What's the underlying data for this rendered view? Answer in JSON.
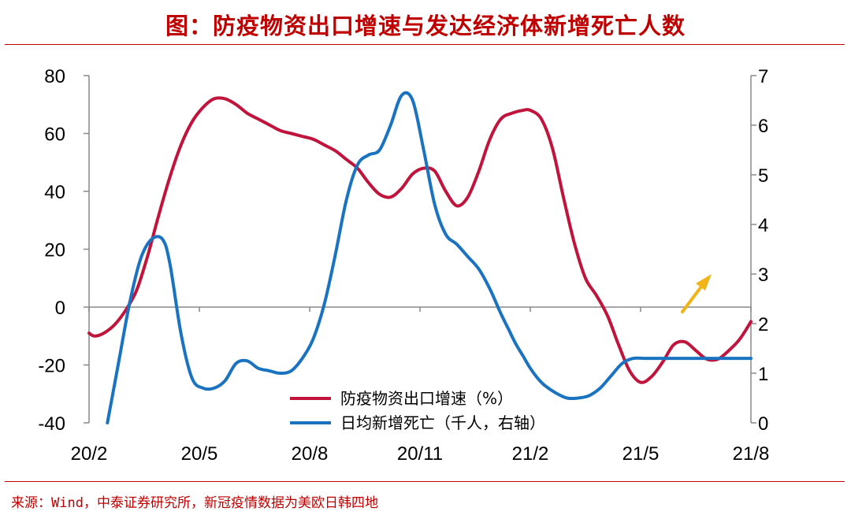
{
  "title": "图：防疫物资出口增速与发达经济体新增死亡人数",
  "source": "来源：Wind，中泰证券研究所，新冠疫情数据为美欧日韩四地",
  "colors": {
    "title": "#c00000",
    "series_red": "#c0143c",
    "series_blue": "#1a73c1",
    "arrow": "#f0b418",
    "axis": "#888888"
  },
  "chart_data": {
    "type": "line",
    "x_tick_labels": [
      "20/2",
      "20/5",
      "20/8",
      "20/11",
      "21/2",
      "21/5",
      "21/8"
    ],
    "y_left": {
      "min": -40,
      "max": 80,
      "ticks": [
        "80",
        "60",
        "40",
        "20",
        "0",
        "-20",
        "-40"
      ]
    },
    "y_right": {
      "min": 0,
      "max": 7,
      "ticks": [
        "7",
        "6",
        "5",
        "4",
        "3",
        "2",
        "1",
        "0"
      ]
    },
    "series": [
      {
        "name": "防疫物资出口增速（%）",
        "axis": "left",
        "color": "#c0143c",
        "x": [
          0.0,
          0.15,
          0.4,
          0.7,
          1.0,
          1.3,
          1.6,
          1.9,
          2.2,
          2.5,
          2.8,
          3.1,
          3.4,
          3.7,
          4.0,
          4.3,
          4.6,
          4.9,
          5.2,
          5.5,
          5.8,
          6.1,
          6.4,
          6.7,
          7.0,
          7.3,
          7.6,
          7.9,
          8.2,
          8.5,
          8.8,
          9.1,
          9.4,
          9.7,
          10.0,
          10.3,
          10.6,
          10.9,
          11.2,
          11.5,
          11.8,
          12.0,
          12.3,
          12.6,
          12.9,
          13.2,
          13.5,
          13.8,
          14.1,
          14.4,
          14.7,
          15.0,
          15.3,
          15.6,
          15.9,
          16.2,
          16.5,
          16.8,
          17.1,
          17.4,
          17.7,
          18.0
        ],
        "y": [
          -9,
          -10,
          -9,
          -6,
          -1,
          6,
          18,
          32,
          45,
          56,
          64,
          69,
          72,
          72,
          70,
          67,
          65,
          63,
          61,
          60,
          59,
          58,
          56,
          54,
          51,
          48,
          43,
          39,
          38,
          41,
          46,
          48,
          47,
          40,
          35,
          38,
          47,
          58,
          65,
          67,
          68,
          68,
          65,
          55,
          38,
          22,
          10,
          4,
          -3,
          -13,
          -22,
          -26,
          -24,
          -19,
          -13,
          -12,
          -15,
          -18,
          -18,
          -15,
          -11,
          -5
        ]
      },
      {
        "name": "日均新增死亡（千人，右轴）",
        "axis": "right",
        "color": "#1a73c1",
        "x": [
          0.5,
          0.8,
          1.1,
          1.4,
          1.7,
          2.0,
          2.2,
          2.5,
          2.8,
          3.1,
          3.4,
          3.7,
          4.0,
          4.3,
          4.6,
          4.9,
          5.2,
          5.5,
          5.8,
          6.1,
          6.4,
          6.7,
          7.0,
          7.3,
          7.6,
          7.9,
          8.2,
          8.5,
          8.8,
          9.1,
          9.4,
          9.7,
          10.0,
          10.3,
          10.6,
          10.9,
          11.2,
          11.4,
          11.6,
          11.8,
          12.0,
          12.2,
          12.4,
          12.7,
          13.0,
          13.3,
          13.6,
          13.9,
          14.2,
          14.5,
          14.8,
          15.1,
          15.4,
          15.7,
          16.0,
          16.3,
          16.6,
          16.9,
          17.2,
          17.5,
          17.8,
          18.0
        ],
        "y": [
          0.0,
          1.2,
          2.4,
          3.3,
          3.7,
          3.7,
          3.2,
          1.8,
          0.9,
          0.7,
          0.7,
          0.85,
          1.2,
          1.25,
          1.1,
          1.05,
          1.0,
          1.05,
          1.3,
          1.7,
          2.4,
          3.4,
          4.5,
          5.2,
          5.4,
          5.5,
          6.0,
          6.6,
          6.5,
          5.5,
          4.4,
          3.8,
          3.6,
          3.35,
          3.1,
          2.7,
          2.2,
          1.9,
          1.6,
          1.35,
          1.1,
          0.9,
          0.75,
          0.6,
          0.5,
          0.5,
          0.55,
          0.7,
          0.95,
          1.2,
          1.3,
          1.3,
          1.3,
          1.3,
          1.3,
          1.3,
          1.3,
          1.3,
          1.3,
          1.3,
          1.3,
          1.3
        ]
      }
    ],
    "legend": {
      "position": "bottom-center"
    },
    "annotation": "rising-arrow"
  }
}
